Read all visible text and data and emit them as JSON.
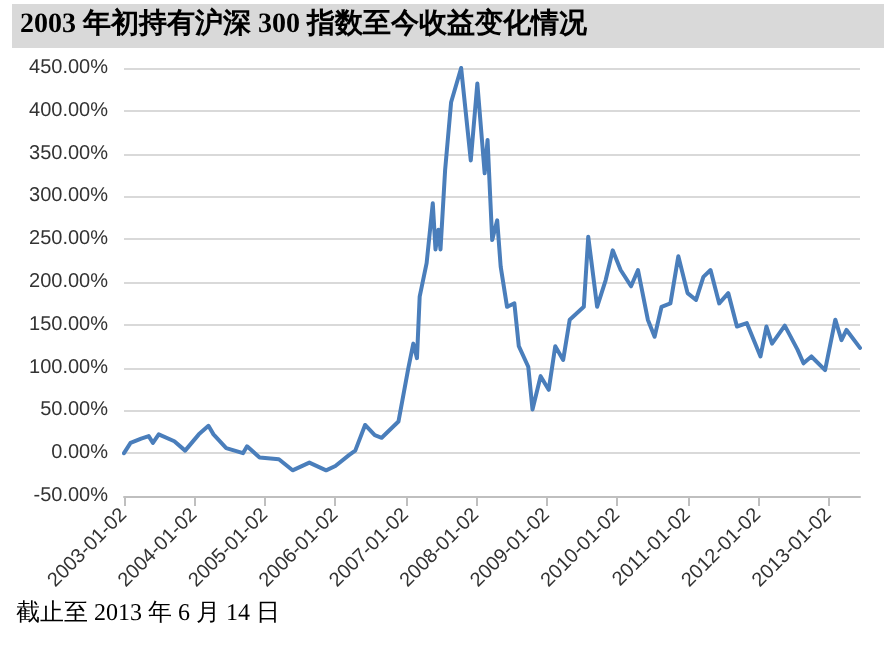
{
  "chart_data": {
    "type": "line",
    "title": "2003 年初持有沪深 300 指数至今收益变化情况",
    "annotations": [
      "截止至 2013 年 6 月 14 日"
    ],
    "x": [
      "2003-01-02",
      "2003-02-05",
      "2003-04-01",
      "2003-05-10",
      "2003-06-01",
      "2003-07-01",
      "2003-09-20",
      "2003-11-15",
      "2004-01-25",
      "2004-03-15",
      "2004-04-10",
      "2004-06-15",
      "2004-09-10",
      "2004-10-01",
      "2004-12-05",
      "2005-03-15",
      "2005-05-25",
      "2005-08-20",
      "2005-11-15",
      "2006-01-02",
      "2006-03-15",
      "2006-04-15",
      "2006-06-05",
      "2006-07-25",
      "2006-08-30",
      "2006-11-25",
      "2007-01-15",
      "2007-02-10",
      "2007-03-01",
      "2007-03-15",
      "2007-04-20",
      "2007-05-22",
      "2007-06-05",
      "2007-06-20",
      "2007-07-01",
      "2007-07-25",
      "2007-08-25",
      "2007-10-16",
      "2007-12-05",
      "2008-01-08",
      "2008-02-15",
      "2008-03-01",
      "2008-03-25",
      "2008-04-20",
      "2008-05-08",
      "2008-06-10",
      "2008-07-18",
      "2008-08-10",
      "2008-09-28",
      "2008-10-20",
      "2008-12-01",
      "2009-01-12",
      "2009-02-15",
      "2009-03-28",
      "2009-05-01",
      "2009-07-13",
      "2009-08-05",
      "2009-09-20",
      "2009-11-03",
      "2009-12-10",
      "2010-01-20",
      "2010-03-15",
      "2010-04-20",
      "2010-06-10",
      "2010-07-15",
      "2010-08-20",
      "2010-10-05",
      "2010-11-15",
      "2011-01-02",
      "2011-02-15",
      "2011-03-25",
      "2011-05-01",
      "2011-06-15",
      "2011-08-01",
      "2011-09-15",
      "2011-11-05",
      "2012-01-15",
      "2012-02-15",
      "2012-03-15",
      "2012-05-20",
      "2012-07-25",
      "2012-08-25",
      "2012-10-05",
      "2012-12-15",
      "2013-02-06",
      "2013-03-10",
      "2013-04-05",
      "2013-06-14"
    ],
    "series": [
      {
        "color": "#4a7ebb",
        "values": [
          0,
          12,
          17,
          20,
          12,
          22,
          14,
          3,
          22,
          32,
          22,
          6,
          0,
          8,
          -5,
          -7,
          -20,
          -11,
          -20,
          -15,
          -2,
          3,
          33,
          21,
          18,
          37,
          99,
          128,
          111,
          183,
          222,
          292,
          238,
          261,
          238,
          331,
          410,
          450,
          342,
          432,
          327,
          366,
          249,
          272,
          218,
          171,
          175,
          125,
          101,
          51,
          90,
          74,
          125,
          109,
          156,
          171,
          253,
          171,
          202,
          237,
          214,
          195,
          214,
          156,
          136,
          171,
          175,
          230,
          187,
          179,
          206,
          214,
          175,
          187,
          148,
          152,
          113,
          148,
          128,
          149,
          121,
          105,
          113,
          97,
          156,
          132,
          144,
          123
        ]
      }
    ],
    "ylim": [
      -50,
      450
    ],
    "yticks": [
      {
        "value": -50,
        "label": "-50.00%"
      },
      {
        "value": 0,
        "label": "0.00%"
      },
      {
        "value": 50,
        "label": "50.00%"
      },
      {
        "value": 100,
        "label": "100.00%"
      },
      {
        "value": 150,
        "label": "150.00%"
      },
      {
        "value": 200,
        "label": "200.00%"
      },
      {
        "value": 250,
        "label": "250.00%"
      },
      {
        "value": 300,
        "label": "300.00%"
      },
      {
        "value": 350,
        "label": "350.00%"
      },
      {
        "value": 400,
        "label": "400.00%"
      },
      {
        "value": 450,
        "label": "450.00%"
      }
    ],
    "xlim": [
      "2003-01-02",
      "2013-06-14"
    ],
    "xticks": [
      "2003-01-02",
      "2004-01-02",
      "2005-01-02",
      "2006-01-02",
      "2007-01-02",
      "2008-01-02",
      "2009-01-02",
      "2010-01-02",
      "2011-01-02",
      "2012-01-02",
      "2013-01-02"
    ],
    "grid": "y",
    "marker": "none",
    "line_style": "solid"
  }
}
